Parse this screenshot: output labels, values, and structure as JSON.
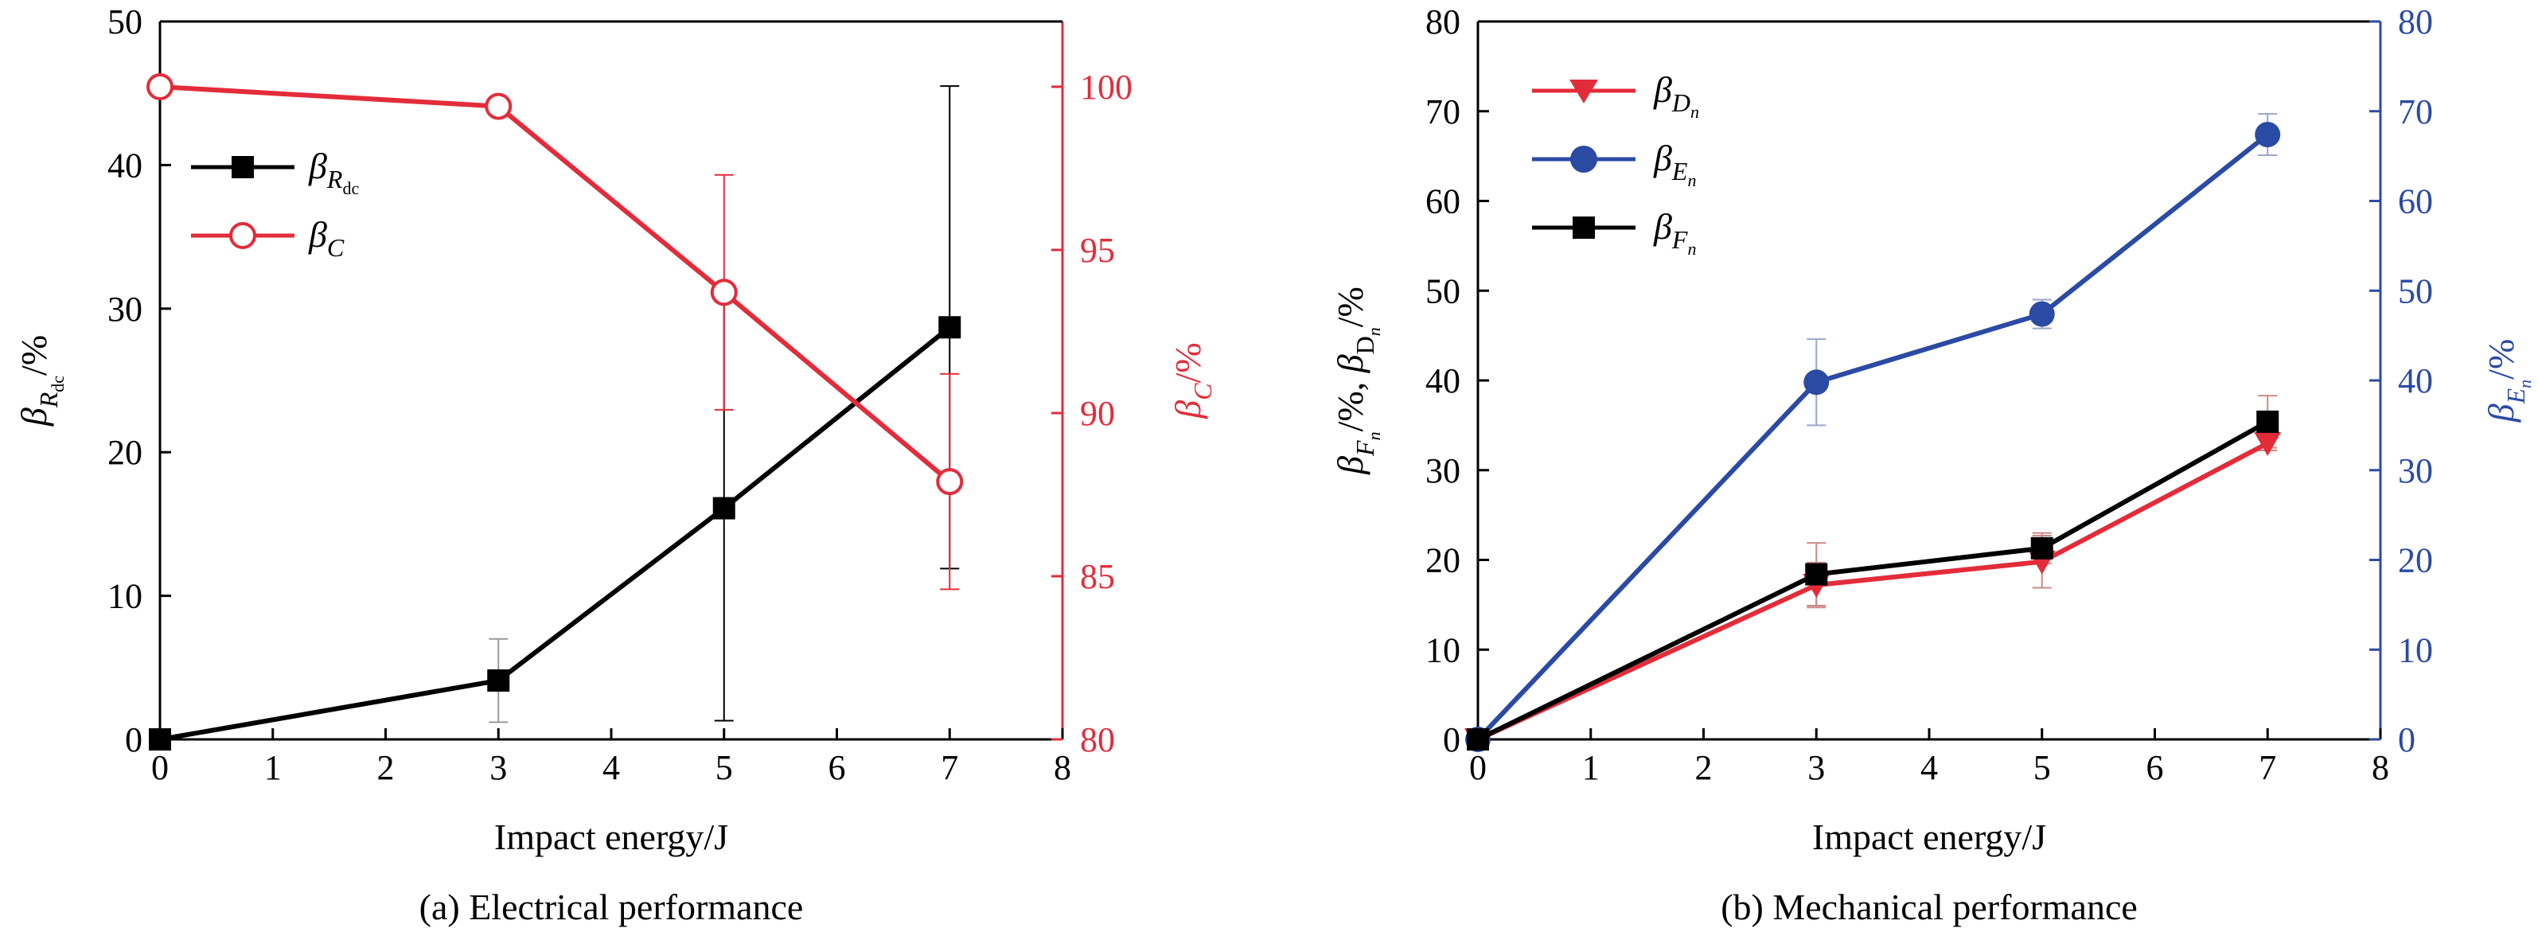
{
  "colors": {
    "black": "#000000",
    "red": "#e32c3a",
    "blue": "#2b4aa4",
    "gray_err": "#999999"
  },
  "chart_data": [
    {
      "type": "line",
      "caption": "(a) Electrical performance",
      "xlabel": "Impact energy/J",
      "ylabel_left": "β_R_dc/%",
      "ylabel_right": "β_C/%",
      "xlim": [
        0,
        8
      ],
      "ylim_left": [
        0,
        50
      ],
      "ylim_right": [
        80,
        102
      ],
      "x_ticks": [
        "0",
        "1",
        "2",
        "3",
        "4",
        "5",
        "6",
        "7",
        "8"
      ],
      "y_left_ticks": [
        "0",
        "10",
        "20",
        "30",
        "40",
        "50"
      ],
      "y_right_ticks": [
        "80",
        "85",
        "90",
        "95",
        "100"
      ],
      "legend_position": "upper-left",
      "series": [
        {
          "name": "β_R_dc",
          "axis": "left",
          "color": "#000000",
          "marker": "square-filled",
          "x": [
            0,
            3,
            5,
            7
          ],
          "y": [
            0,
            4.1,
            16.1,
            28.7
          ],
          "err": [
            0.5,
            2.9,
            14.8,
            16.8
          ]
        },
        {
          "name": "β_C",
          "axis": "right",
          "color": "#e32c3a",
          "marker": "circle-open",
          "x": [
            0,
            3,
            5,
            7
          ],
          "y": [
            100,
            99.4,
            93.7,
            87.9
          ],
          "err": [
            0,
            0,
            3.6,
            3.3
          ]
        }
      ]
    },
    {
      "type": "line",
      "caption": "(b) Mechanical performance",
      "xlabel": "Impact energy/J",
      "ylabel_left": "β_F_n/%, β_D_n/%",
      "ylabel_right": "β_E_n/%",
      "xlim": [
        0,
        8
      ],
      "ylim_left": [
        0,
        80
      ],
      "ylim_right": [
        0,
        80
      ],
      "x_ticks": [
        "0",
        "1",
        "2",
        "3",
        "4",
        "5",
        "6",
        "7",
        "8"
      ],
      "y_left_ticks": [
        "0",
        "10",
        "20",
        "30",
        "40",
        "50",
        "60",
        "70",
        "80"
      ],
      "y_right_ticks": [
        "0",
        "10",
        "20",
        "30",
        "40",
        "50",
        "60",
        "70",
        "80"
      ],
      "legend_position": "upper-left",
      "series": [
        {
          "name": "β_D_n",
          "axis": "left",
          "color": "#e32c3a",
          "marker": "triangle-down",
          "x": [
            0,
            3,
            5,
            7
          ],
          "y": [
            0,
            17.2,
            19.8,
            33.0
          ],
          "err": [
            0,
            2.5,
            2.9,
            0.8
          ]
        },
        {
          "name": "β_E_n",
          "axis": "right",
          "color": "#2b4aa4",
          "marker": "circle-filled",
          "x": [
            0,
            3,
            5,
            7
          ],
          "y": [
            0,
            39.8,
            47.4,
            67.4
          ],
          "err": [
            0,
            4.8,
            1.6,
            2.3
          ]
        },
        {
          "name": "β_F_n",
          "axis": "left",
          "color": "#000000",
          "marker": "square-filled",
          "x": [
            0,
            3,
            5,
            7
          ],
          "y": [
            0,
            18.4,
            21.3,
            35.4
          ],
          "err": [
            0,
            3.5,
            1.7,
            2.9
          ]
        }
      ]
    }
  ]
}
